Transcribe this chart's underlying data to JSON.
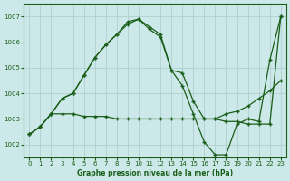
{
  "title": "Graphe pression niveau de la mer (hPa)",
  "bg_color": "#cce8e8",
  "grid_color": "#aacccc",
  "line_color": "#1a5e1a",
  "marker": "+",
  "xlim": [
    -0.5,
    23.5
  ],
  "ylim": [
    1001.5,
    1007.5
  ],
  "yticks": [
    1002,
    1003,
    1004,
    1005,
    1006,
    1007
  ],
  "xticks": [
    0,
    1,
    2,
    3,
    4,
    5,
    6,
    7,
    8,
    9,
    10,
    11,
    12,
    13,
    14,
    15,
    16,
    17,
    18,
    19,
    20,
    21,
    22,
    23
  ],
  "line1_x": [
    0,
    1,
    2,
    3,
    4,
    5,
    6,
    7,
    8,
    9,
    10,
    11,
    12,
    13,
    14,
    15,
    16,
    17,
    18,
    19,
    20,
    21,
    22,
    23
  ],
  "line1_y": [
    1002.4,
    1002.7,
    1003.2,
    1003.8,
    1004.0,
    1004.7,
    1005.4,
    1005.9,
    1006.3,
    1006.8,
    1006.9,
    1006.6,
    1006.3,
    1004.9,
    1004.8,
    1003.7,
    1003.0,
    1003.0,
    1003.2,
    1003.3,
    1003.5,
    1003.8,
    1004.1,
    1004.5
  ],
  "line2_x": [
    0,
    1,
    2,
    3,
    4,
    5,
    6,
    7,
    8,
    9,
    10,
    11,
    12,
    13,
    14,
    15,
    16,
    17,
    18,
    19,
    20,
    21,
    22,
    23
  ],
  "line2_y": [
    1002.4,
    1002.7,
    1003.2,
    1003.8,
    1004.0,
    1004.7,
    1005.4,
    1005.9,
    1006.3,
    1006.7,
    1006.9,
    1006.5,
    1006.2,
    1004.9,
    1004.3,
    1003.2,
    1002.1,
    1001.6,
    1001.6,
    1002.8,
    1003.0,
    1002.9,
    1005.3,
    1007.0
  ],
  "line3_x": [
    0,
    1,
    2,
    3,
    4,
    5,
    6,
    7,
    8,
    9,
    10,
    11,
    12,
    13,
    14,
    15,
    16,
    17,
    18,
    19,
    20,
    21,
    22,
    23
  ],
  "line3_y": [
    1002.4,
    1002.7,
    1003.2,
    1003.2,
    1003.2,
    1003.1,
    1003.1,
    1003.1,
    1003.0,
    1003.0,
    1003.0,
    1003.0,
    1003.0,
    1003.0,
    1003.0,
    1003.0,
    1003.0,
    1003.0,
    1002.9,
    1002.9,
    1002.8,
    1002.8,
    1002.8,
    1007.0
  ]
}
